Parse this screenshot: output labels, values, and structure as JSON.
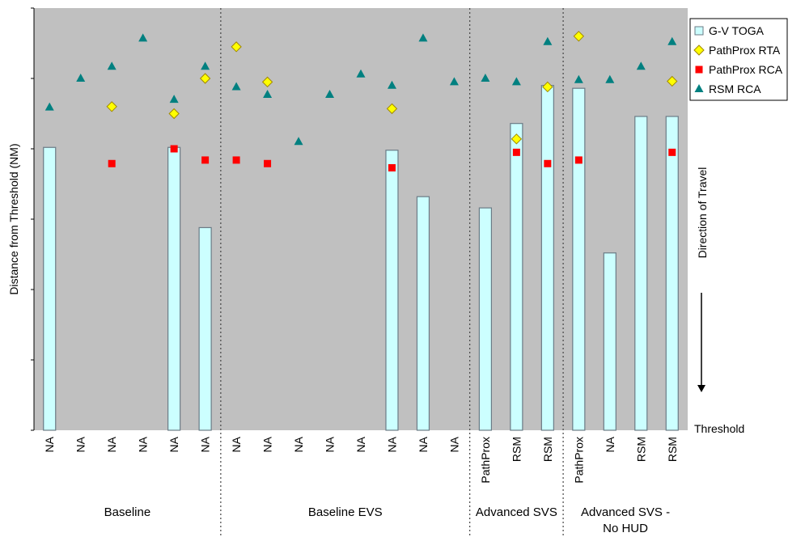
{
  "chart_data": {
    "type": "bar",
    "ylabel": "Distance from Threshold (NM)",
    "ylim": [
      0,
      6
    ],
    "ytick_labels": [
      "",
      "",
      "",
      "",
      "",
      "",
      ""
    ],
    "grid": false,
    "legend_position": "right",
    "categories": [
      "NA",
      "NA",
      "NA",
      "NA",
      "NA",
      "NA",
      "NA",
      "NA",
      "NA",
      "NA",
      "NA",
      "NA",
      "NA",
      "NA",
      "PathProx",
      "RSM",
      "RSM",
      "PathProx",
      "NA",
      "RSM",
      "RSM"
    ],
    "groups": [
      {
        "label": "Baseline",
        "start": 0,
        "end": 5
      },
      {
        "label": "Baseline EVS",
        "start": 6,
        "end": 13
      },
      {
        "label": "Advanced SVS",
        "start": 14,
        "end": 16
      },
      {
        "label": "Advanced SVS -\nNo HUD",
        "start": 17,
        "end": 20
      }
    ],
    "series": [
      {
        "name": "G-V TOGA",
        "kind": "bar",
        "color": "#ccffff",
        "values": [
          4.02,
          null,
          null,
          null,
          4.02,
          2.88,
          null,
          null,
          null,
          null,
          null,
          3.98,
          3.32,
          null,
          3.16,
          4.36,
          4.9,
          4.86,
          2.52,
          4.46,
          4.46
        ]
      },
      {
        "name": "PathProx RTA",
        "kind": "marker",
        "shape": "diamond",
        "color": "#ffff00",
        "values": [
          null,
          null,
          4.6,
          null,
          4.5,
          5.0,
          5.45,
          4.95,
          null,
          null,
          null,
          4.57,
          null,
          null,
          null,
          4.14,
          4.88,
          5.6,
          null,
          null,
          4.96
        ]
      },
      {
        "name": "PathProx RCA",
        "kind": "marker",
        "shape": "square",
        "color": "#ff0000",
        "values": [
          null,
          null,
          3.79,
          null,
          4.0,
          3.84,
          3.84,
          3.79,
          null,
          null,
          null,
          3.73,
          null,
          null,
          null,
          3.95,
          3.79,
          3.84,
          null,
          null,
          3.95
        ]
      },
      {
        "name": "RSM RCA",
        "kind": "marker",
        "shape": "triangle",
        "color": "#008080",
        "values": [
          4.59,
          5.0,
          5.17,
          5.57,
          4.7,
          5.17,
          4.88,
          4.77,
          4.1,
          4.77,
          5.06,
          4.9,
          5.57,
          4.95,
          5.0,
          4.95,
          5.52,
          4.98,
          4.98,
          5.17,
          5.52
        ]
      }
    ]
  },
  "legend": {
    "items": [
      {
        "label": "G-V TOGA"
      },
      {
        "label": "PathProx RTA"
      },
      {
        "label": "PathProx RCA"
      },
      {
        "label": "RSM RCA"
      }
    ]
  },
  "annotations": {
    "direction": "Direction of Travel",
    "threshold": "Threshold"
  },
  "colors": {
    "plot_background": "#c0c0c0",
    "bar_stroke": "#6b7b86",
    "diamond_stroke": "#a08800",
    "divider": "#444444"
  }
}
